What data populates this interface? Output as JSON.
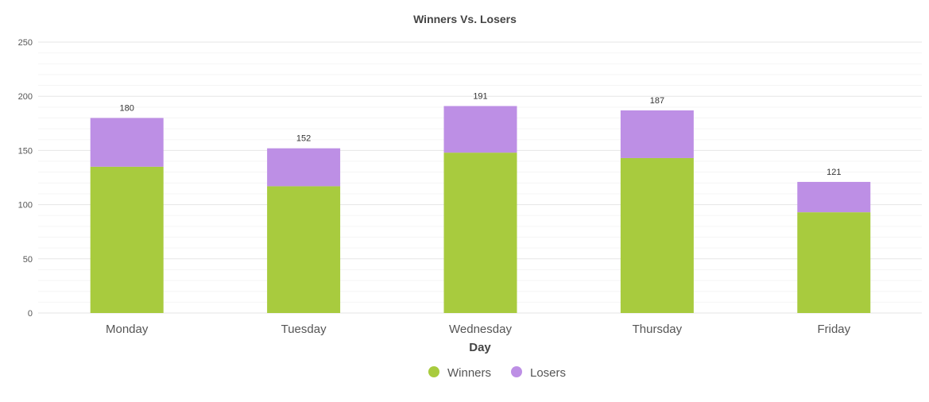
{
  "chart_data": {
    "type": "bar",
    "stacked": true,
    "title": "Winners Vs. Losers",
    "xlabel": "Day",
    "ylabel": "",
    "categories": [
      "Monday",
      "Tuesday",
      "Wednesday",
      "Thursday",
      "Friday"
    ],
    "series": [
      {
        "name": "Winners",
        "color": "#a8cb3e",
        "values": [
          135,
          117,
          148,
          143,
          93
        ]
      },
      {
        "name": "Losers",
        "color": "#bd8fe5",
        "values": [
          45,
          35,
          43,
          44,
          28
        ]
      }
    ],
    "totals": [
      "180",
      "152",
      "191",
      "187",
      "121"
    ],
    "ylim": [
      0,
      250
    ],
    "yticks": [
      "0",
      "50",
      "100",
      "150",
      "200",
      "250"
    ],
    "grid": true,
    "legend_position": "bottom"
  }
}
